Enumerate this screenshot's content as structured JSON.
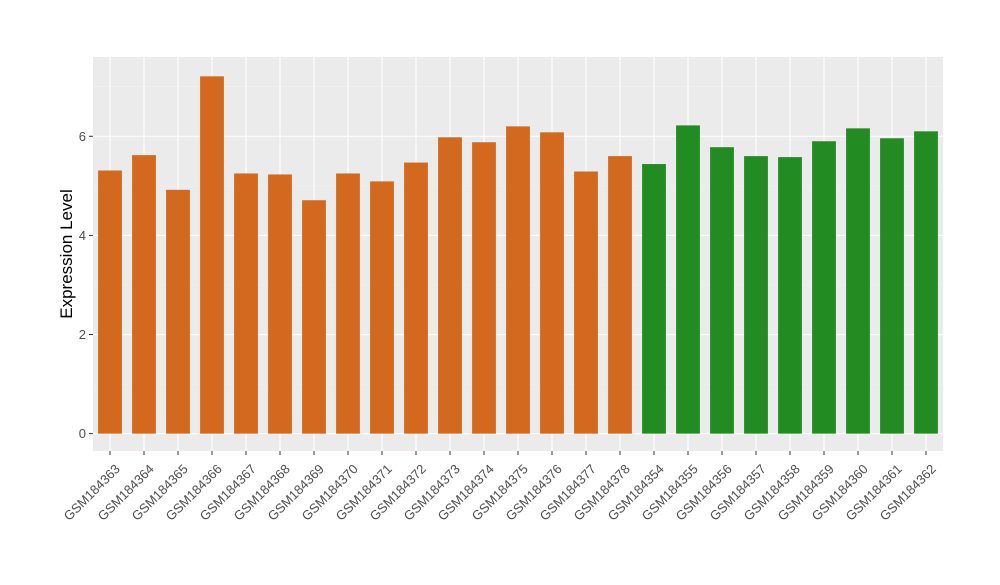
{
  "chart_data": {
    "type": "bar",
    "title": "",
    "xlabel": "",
    "ylabel": "Expression Level",
    "ylim": [
      -0.35,
      7.6
    ],
    "yticks": [
      0,
      2,
      4,
      6
    ],
    "grid": true,
    "legend": "none",
    "categories": [
      "GSM184363",
      "GSM184364",
      "GSM184365",
      "GSM184366",
      "GSM184367",
      "GSM184368",
      "GSM184369",
      "GSM184370",
      "GSM184371",
      "GSM184372",
      "GSM184373",
      "GSM184374",
      "GSM184375",
      "GSM184376",
      "GSM184377",
      "GSM184378",
      "GSM184354",
      "GSM184355",
      "GSM184356",
      "GSM184357",
      "GSM184358",
      "GSM184359",
      "GSM184360",
      "GSM184361",
      "GSM184362"
    ],
    "values": [
      5.31,
      5.62,
      4.92,
      7.21,
      5.25,
      5.23,
      4.71,
      5.25,
      5.09,
      5.47,
      5.98,
      5.88,
      6.2,
      6.08,
      5.29,
      5.6,
      5.44,
      6.22,
      5.78,
      5.6,
      5.58,
      5.9,
      6.16,
      5.96,
      6.1
    ],
    "bar_colors": [
      "#D2691E",
      "#D2691E",
      "#D2691E",
      "#D2691E",
      "#D2691E",
      "#D2691E",
      "#D2691E",
      "#D2691E",
      "#D2691E",
      "#D2691E",
      "#D2691E",
      "#D2691E",
      "#D2691E",
      "#D2691E",
      "#D2691E",
      "#D2691E",
      "#228B22",
      "#228B22",
      "#228B22",
      "#228B22",
      "#228B22",
      "#228B22",
      "#228B22",
      "#228B22",
      "#228B22"
    ],
    "colors": {
      "panel": "#EBEBEB",
      "grid_major": "#FFFFFF",
      "grid_minor": "#F2F2F2",
      "axis_text": "#4D4D4D",
      "tick": "#333333"
    }
  }
}
